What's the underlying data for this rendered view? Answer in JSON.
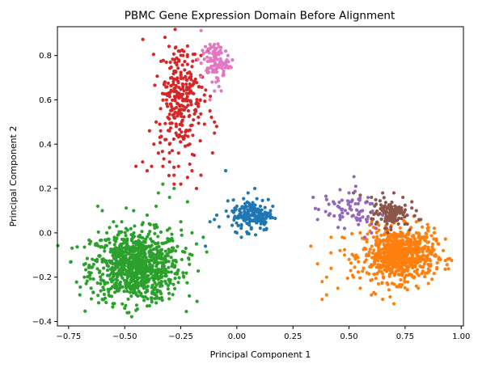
{
  "chart_data": {
    "type": "scatter",
    "title": "PBMC Gene Expression Domain Before Alignment",
    "xlabel": "Principal Component 1",
    "ylabel": "Principal Component 2",
    "xlim": [
      -0.8,
      1.01
    ],
    "ylim": [
      -0.42,
      0.93
    ],
    "xticks": [
      -0.75,
      -0.5,
      -0.25,
      0.0,
      0.25,
      0.5,
      0.75,
      1.0
    ],
    "xtick_labels": [
      "−0.75",
      "−0.50",
      "−0.25",
      "0.00",
      "0.25",
      "0.50",
      "0.75",
      "1.00"
    ],
    "yticks": [
      -0.4,
      -0.2,
      0.0,
      0.2,
      0.4,
      0.6,
      0.8
    ],
    "ytick_labels": [
      "−0.4",
      "−0.2",
      "0.0",
      "0.2",
      "0.4",
      "0.6",
      "0.8"
    ],
    "grid": false,
    "legend": "none",
    "series": [
      {
        "color": "#2ca02c",
        "cluster": {
          "center": [
            -0.45,
            -0.15
          ],
          "spread": [
            0.1,
            0.08
          ],
          "count": 900
        },
        "points": [
          [
            -0.35,
            0.18
          ],
          [
            -0.3,
            0.16
          ],
          [
            -0.22,
            0.14
          ],
          [
            -0.6,
            0.1
          ],
          [
            -0.7,
            -0.28
          ],
          [
            -0.68,
            -0.2
          ],
          [
            -0.62,
            0.12
          ],
          [
            -0.45,
            -0.35
          ],
          [
            -0.4,
            -0.33
          ],
          [
            -0.55,
            -0.32
          ],
          [
            -0.5,
            -0.34
          ],
          [
            -0.2,
            -0.1
          ],
          [
            -0.18,
            -0.05
          ],
          [
            -0.25,
            0.05
          ],
          [
            -0.3,
            0.02
          ],
          [
            -0.4,
            0.08
          ],
          [
            -0.36,
            0.12
          ],
          [
            -0.6,
            -0.3
          ],
          [
            -0.65,
            -0.25
          ],
          [
            -0.15,
            -0.02
          ],
          [
            -0.28,
            0.2
          ],
          [
            -0.33,
            0.22
          ],
          [
            -0.58,
            0.0
          ],
          [
            -0.63,
            -0.05
          ],
          [
            -0.55,
            0.05
          ],
          [
            -0.46,
            0.1
          ],
          [
            -0.38,
            -0.3
          ],
          [
            -0.3,
            -0.22
          ],
          [
            -0.24,
            -0.18
          ],
          [
            -0.2,
            0.0
          ]
        ]
      },
      {
        "color": "#ff7f0e",
        "cluster": {
          "center": [
            0.72,
            -0.1
          ],
          "spread": [
            0.08,
            0.06
          ],
          "count": 700
        },
        "points": [
          [
            0.5,
            -0.12
          ],
          [
            0.48,
            -0.1
          ],
          [
            0.42,
            -0.16
          ],
          [
            0.4,
            -0.2
          ],
          [
            0.38,
            -0.22
          ],
          [
            0.45,
            -0.25
          ],
          [
            0.4,
            -0.28
          ],
          [
            0.38,
            -0.3
          ],
          [
            0.42,
            -0.02
          ],
          [
            0.55,
            -0.25
          ],
          [
            0.6,
            -0.28
          ],
          [
            0.65,
            -0.3
          ],
          [
            0.7,
            -0.32
          ],
          [
            0.9,
            -0.05
          ],
          [
            0.92,
            -0.08
          ],
          [
            0.88,
            0.0
          ],
          [
            0.85,
            0.02
          ],
          [
            0.8,
            0.05
          ],
          [
            0.33,
            -0.06
          ],
          [
            0.36,
            -0.14
          ],
          [
            0.47,
            -0.02
          ],
          [
            0.55,
            0.0
          ],
          [
            0.62,
            0.02
          ],
          [
            0.75,
            0.05
          ],
          [
            0.85,
            -0.18
          ],
          [
            0.8,
            -0.24
          ],
          [
            0.9,
            -0.12
          ],
          [
            0.52,
            -0.2
          ],
          [
            0.58,
            -0.18
          ],
          [
            0.46,
            -0.08
          ]
        ]
      },
      {
        "color": "#1f77b4",
        "cluster": {
          "center": [
            0.07,
            0.08
          ],
          "spread": [
            0.045,
            0.035
          ],
          "count": 170
        },
        "points": [
          [
            -0.05,
            0.28
          ],
          [
            -0.1,
            0.06
          ],
          [
            -0.12,
            0.05
          ],
          [
            -0.09,
            0.08
          ],
          [
            -0.14,
            -0.06
          ],
          [
            0.0,
            0.12
          ],
          [
            0.15,
            0.1
          ],
          [
            0.16,
            0.12
          ],
          [
            0.14,
            0.15
          ],
          [
            0.05,
            0.18
          ],
          [
            0.08,
            0.2
          ],
          [
            0.02,
            -0.02
          ],
          [
            0.0,
            0.0
          ]
        ]
      },
      {
        "color": "#d62728",
        "cluster": {
          "center": [
            -0.25,
            0.62
          ],
          "spread": [
            0.05,
            0.12
          ],
          "count": 260
        },
        "points": [
          [
            -0.12,
            0.55
          ],
          [
            -0.1,
            0.5
          ],
          [
            -0.09,
            0.48
          ],
          [
            -0.1,
            0.45
          ],
          [
            -0.2,
            0.28
          ],
          [
            -0.16,
            0.26
          ],
          [
            -0.25,
            0.22
          ],
          [
            -0.28,
            0.22
          ],
          [
            -0.22,
            0.25
          ],
          [
            -0.18,
            0.2
          ],
          [
            -0.3,
            0.32
          ],
          [
            -0.33,
            0.3
          ],
          [
            -0.38,
            0.3
          ],
          [
            -0.4,
            0.28
          ],
          [
            -0.37,
            0.4
          ],
          [
            -0.35,
            0.36
          ],
          [
            -0.32,
            0.42
          ],
          [
            -0.3,
            0.46
          ],
          [
            -0.28,
            0.52
          ],
          [
            -0.26,
            0.58
          ],
          [
            -0.24,
            0.66
          ],
          [
            -0.22,
            0.72
          ],
          [
            -0.2,
            0.75
          ],
          [
            -0.18,
            0.78
          ],
          [
            -0.16,
            0.8
          ],
          [
            -0.13,
            0.82
          ],
          [
            -0.26,
            0.82
          ],
          [
            -0.24,
            0.8
          ],
          [
            -0.22,
            0.76
          ],
          [
            -0.29,
            0.7
          ],
          [
            -0.31,
            0.62
          ],
          [
            -0.34,
            0.56
          ],
          [
            -0.36,
            0.5
          ],
          [
            -0.34,
            0.46
          ],
          [
            -0.27,
            0.48
          ],
          [
            -0.23,
            0.44
          ],
          [
            -0.21,
            0.4
          ],
          [
            -0.19,
            0.35
          ],
          [
            -0.26,
            0.36
          ],
          [
            -0.3,
            0.4
          ],
          [
            -0.42,
            0.32
          ],
          [
            -0.45,
            0.3
          ],
          [
            -0.26,
            0.3
          ],
          [
            -0.21,
            0.31
          ],
          [
            -0.28,
            0.26
          ]
        ]
      },
      {
        "color": "#e377c2",
        "cluster": {
          "center": [
            -0.1,
            0.77
          ],
          "spread": [
            0.03,
            0.04
          ],
          "count": 90
        },
        "points": [
          [
            -0.05,
            0.82
          ],
          [
            -0.04,
            0.8
          ],
          [
            -0.05,
            0.76
          ],
          [
            -0.06,
            0.72
          ],
          [
            -0.08,
            0.66
          ],
          [
            -0.07,
            0.64
          ],
          [
            -0.09,
            0.7
          ],
          [
            -0.11,
            0.68
          ],
          [
            -0.1,
            0.64
          ],
          [
            -0.12,
            0.6
          ],
          [
            -0.14,
            0.84
          ],
          [
            -0.12,
            0.85
          ],
          [
            -0.1,
            0.85
          ],
          [
            -0.08,
            0.84
          ],
          [
            -0.02,
            0.78
          ],
          [
            -0.03,
            0.75
          ]
        ]
      },
      {
        "color": "#8c564b",
        "cluster": {
          "center": [
            0.68,
            0.09
          ],
          "spread": [
            0.04,
            0.03
          ],
          "count": 120
        },
        "points": [
          [
            0.52,
            0.18
          ],
          [
            0.55,
            0.17
          ],
          [
            0.58,
            0.14
          ],
          [
            0.6,
            0.16
          ],
          [
            0.65,
            0.18
          ],
          [
            0.7,
            0.18
          ],
          [
            0.74,
            0.16
          ],
          [
            0.78,
            0.14
          ],
          [
            0.8,
            0.1
          ],
          [
            0.72,
            0.04
          ],
          [
            0.66,
            0.02
          ],
          [
            0.62,
            0.04
          ],
          [
            0.58,
            0.06
          ],
          [
            0.76,
            0.04
          ],
          [
            0.82,
            0.06
          ]
        ]
      },
      {
        "color": "#9467bd",
        "cluster": {
          "center": [
            0.5,
            0.11
          ],
          "spread": [
            0.06,
            0.04
          ],
          "count": 55
        },
        "points": [
          [
            0.34,
            0.16
          ],
          [
            0.35,
            0.11
          ],
          [
            0.36,
            0.06
          ],
          [
            0.4,
            0.15
          ],
          [
            0.43,
            0.14
          ],
          [
            0.45,
            0.12
          ],
          [
            0.47,
            0.09
          ],
          [
            0.41,
            0.08
          ],
          [
            0.46,
            0.06
          ],
          [
            0.48,
            0.02
          ],
          [
            0.5,
            0.18
          ],
          [
            0.53,
            0.21
          ],
          [
            0.56,
            0.1
          ],
          [
            0.58,
            0.05
          ],
          [
            0.6,
            0.04
          ],
          [
            0.62,
            0.02
          ],
          [
            0.57,
            -0.02
          ],
          [
            0.6,
            0.0
          ],
          [
            0.65,
            0.08
          ]
        ]
      }
    ]
  }
}
